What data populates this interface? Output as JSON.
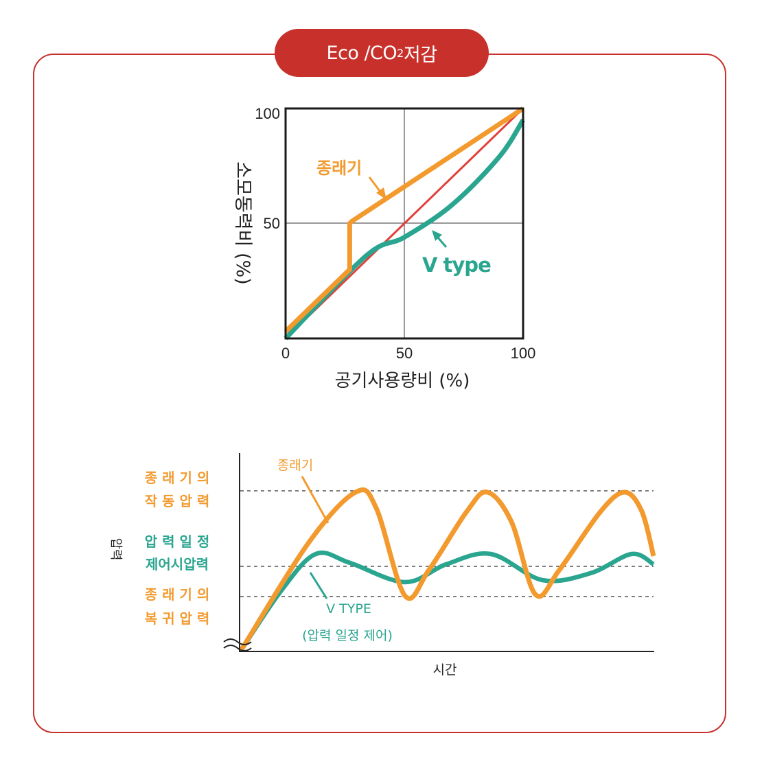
{
  "header": {
    "badge_prefix": "Eco /CO",
    "badge_subscript": "2",
    "badge_suffix": " 저감"
  },
  "colors": {
    "frame": "#c8312b",
    "conventional": "#f39a2e",
    "vtype": "#2aa58f",
    "reference": "#e0413a"
  },
  "chart_data": [
    {
      "type": "line",
      "xlabel": "공기사용량비 (%)",
      "ylabel": "소모동력비 (%)",
      "xlim": [
        0,
        100
      ],
      "ylim": [
        0,
        100
      ],
      "xticks": [
        "0",
        "50",
        "100"
      ],
      "yticks": [
        "50",
        "100"
      ],
      "grid": true,
      "series": [
        {
          "name": "종래기",
          "x": [
            0,
            27,
            27,
            28,
            100
          ],
          "y": [
            3,
            30,
            50,
            51,
            100
          ]
        },
        {
          "name": "V type",
          "x": [
            0,
            34,
            50,
            70,
            90,
            100
          ],
          "y": [
            0,
            36,
            44,
            58,
            79,
            95
          ]
        },
        {
          "x": [
            0,
            100
          ],
          "y": [
            0,
            100
          ]
        }
      ]
    },
    {
      "type": "line",
      "xlabel": "시간",
      "ylabel": "압력",
      "levels": [
        {
          "label_line1": "종 래 기 의",
          "label_line2": "작 동 압 력",
          "value": 1.0
        },
        {
          "label_line1": "압 력 일 정",
          "label_line2": "제어시압력",
          "value": 0.5
        },
        {
          "label_line1": "종 래 기 의",
          "label_line2": "복 귀 압 력",
          "value": 0.3
        }
      ],
      "series": [
        {
          "name": "종래기"
        },
        {
          "name": "V TYPE",
          "note": "(압력 일정 제어)"
        }
      ]
    }
  ]
}
